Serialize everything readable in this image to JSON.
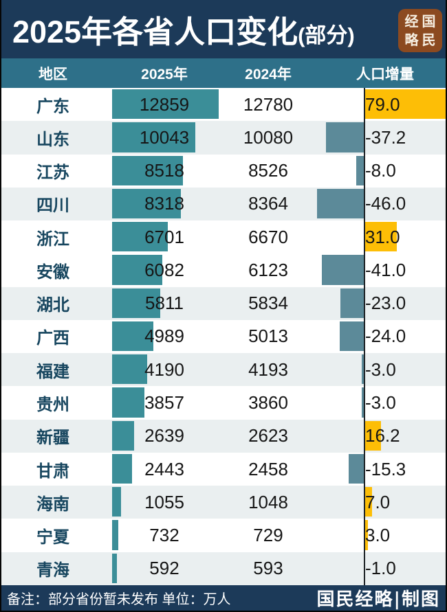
{
  "title": {
    "main": "2025年各省人口变化",
    "suffix": "(部分)"
  },
  "seal": {
    "chars": [
      "经",
      "国",
      "略",
      "民"
    ]
  },
  "header": {
    "region": "地区",
    "y2025": "2025年",
    "y2024": "2024年",
    "delta": "人口增量"
  },
  "rows": [
    {
      "region": "广东",
      "v2025": 12859,
      "v2024": 12780,
      "delta": 79.0,
      "delta_label": "79.0",
      "shaded": false
    },
    {
      "region": "山东",
      "v2025": 10043,
      "v2024": 10080,
      "delta": -37.2,
      "delta_label": "-37.2",
      "shaded": true
    },
    {
      "region": "江苏",
      "v2025": 8518,
      "v2024": 8526,
      "delta": -8.0,
      "delta_label": "-8.0",
      "shaded": false
    },
    {
      "region": "四川",
      "v2025": 8318,
      "v2024": 8364,
      "delta": -46.0,
      "delta_label": "-46.0",
      "shaded": true
    },
    {
      "region": "浙江",
      "v2025": 6701,
      "v2024": 6670,
      "delta": 31.0,
      "delta_label": "31.0",
      "shaded": false
    },
    {
      "region": "安徽",
      "v2025": 6082,
      "v2024": 6123,
      "delta": -41.0,
      "delta_label": "-41.0",
      "shaded": false
    },
    {
      "region": "湖北",
      "v2025": 5811,
      "v2024": 5834,
      "delta": -23.0,
      "delta_label": "-23.0",
      "shaded": true
    },
    {
      "region": "广西",
      "v2025": 4989,
      "v2024": 5013,
      "delta": -24.0,
      "delta_label": "-24.0",
      "shaded": false
    },
    {
      "region": "福建",
      "v2025": 4190,
      "v2024": 4193,
      "delta": -3.0,
      "delta_label": "-3.0",
      "shaded": true
    },
    {
      "region": "贵州",
      "v2025": 3857,
      "v2024": 3860,
      "delta": -3.0,
      "delta_label": "-3.0",
      "shaded": false
    },
    {
      "region": "新疆",
      "v2025": 2639,
      "v2024": 2623,
      "delta": 16.2,
      "delta_label": "16.2",
      "shaded": true
    },
    {
      "region": "甘肃",
      "v2025": 2443,
      "v2024": 2458,
      "delta": -15.3,
      "delta_label": "-15.3",
      "shaded": false
    },
    {
      "region": "海南",
      "v2025": 1055,
      "v2024": 1048,
      "delta": 7.0,
      "delta_label": "7.0",
      "shaded": true
    },
    {
      "region": "宁夏",
      "v2025": 732,
      "v2024": 729,
      "delta": 3.0,
      "delta_label": "3.0",
      "shaded": false
    },
    {
      "region": "青海",
      "v2025": 592,
      "v2024": 593,
      "delta": -1.0,
      "delta_label": "-1.0",
      "shaded": true
    }
  ],
  "watermark": {
    "text": "国民经略"
  },
  "footer": {
    "note": "备注：部分省份暂未发布 单位：万人",
    "credit": "国民经略|制图"
  },
  "colors": {
    "title_bar": "#1C3A59",
    "header_bar": "#2E7089",
    "bar_2025": "#3B8E98",
    "bar_negative": "#5C8A99",
    "bar_positive": "#FDBE06",
    "row_shade": "#EAEFF0",
    "province_text": "#17465F",
    "seal_background": "#8C4A20"
  },
  "chart_data": {
    "type": "bar",
    "title": "2025年各省人口变化(部分)",
    "unit": "万人",
    "categories": [
      "广东",
      "山东",
      "江苏",
      "四川",
      "浙江",
      "安徽",
      "湖北",
      "广西",
      "福建",
      "贵州",
      "新疆",
      "甘肃",
      "海南",
      "宁夏",
      "青海"
    ],
    "series": [
      {
        "name": "2025年",
        "values": [
          12859,
          10043,
          8518,
          8318,
          6701,
          6082,
          5811,
          4989,
          4190,
          3857,
          2639,
          2443,
          1055,
          732,
          592
        ]
      },
      {
        "name": "2024年",
        "values": [
          12780,
          10080,
          8526,
          8364,
          6670,
          6123,
          5834,
          5013,
          4193,
          3860,
          2623,
          2458,
          1048,
          729,
          593
        ]
      },
      {
        "name": "人口增量",
        "values": [
          79.0,
          -37.2,
          -8.0,
          -46.0,
          31.0,
          -41.0,
          -23.0,
          -24.0,
          -3.0,
          -3.0,
          16.2,
          -15.3,
          7.0,
          3.0,
          -1.0
        ]
      }
    ],
    "legend_position": "header-row",
    "grid": false,
    "note": "备注：部分省份暂未发布 单位：万人"
  }
}
